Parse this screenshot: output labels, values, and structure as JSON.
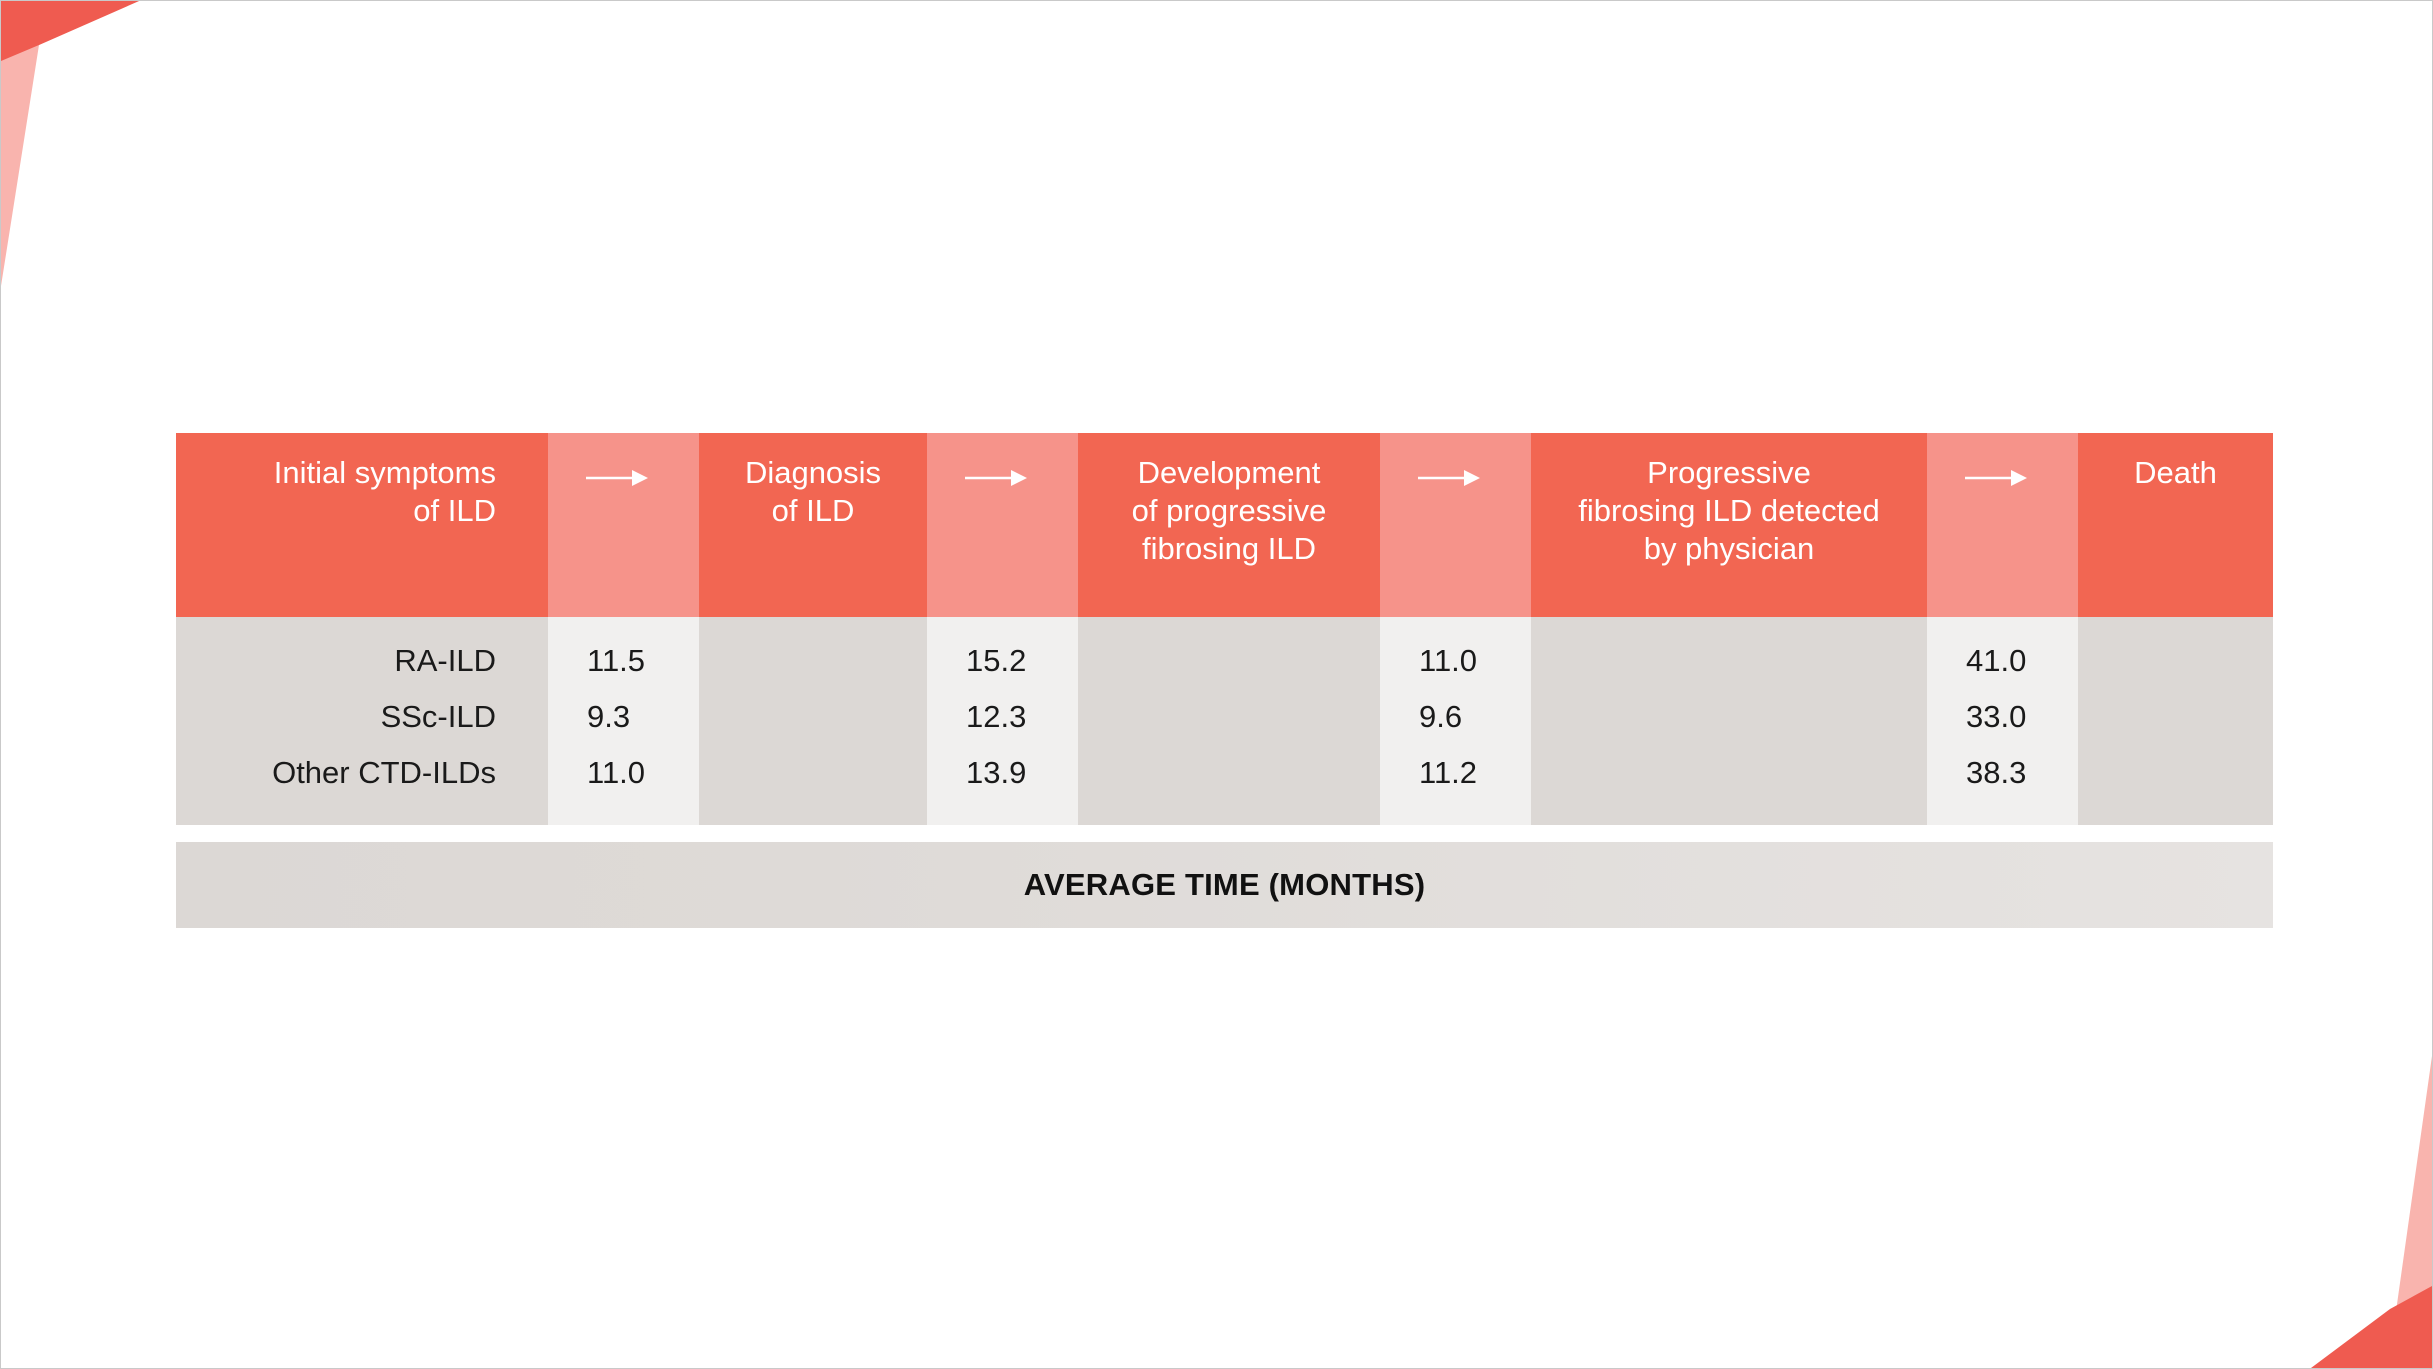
{
  "chart_data": {
    "type": "table",
    "columns": [
      {
        "kind": "stage",
        "lines": [
          "Initial symptoms",
          "of ILD"
        ],
        "align": "right"
      },
      {
        "kind": "interval"
      },
      {
        "kind": "stage",
        "lines": [
          "Diagnosis",
          "of ILD"
        ],
        "align": "center"
      },
      {
        "kind": "interval"
      },
      {
        "kind": "stage",
        "lines": [
          "Development",
          "of progressive",
          "fibrosing ILD"
        ],
        "align": "center"
      },
      {
        "kind": "interval"
      },
      {
        "kind": "stage",
        "lines": [
          "Progressive",
          "fibrosing ILD detected",
          "by physician"
        ],
        "align": "center"
      },
      {
        "kind": "interval"
      },
      {
        "kind": "stage",
        "lines": [
          "Death"
        ],
        "align": "center"
      }
    ],
    "rows": [
      {
        "label": "RA-ILD",
        "values": [
          "11.5",
          "15.2",
          "11.0",
          "41.0"
        ]
      },
      {
        "label": "SSc-ILD",
        "values": [
          "9.3",
          "12.3",
          "9.6",
          "33.0"
        ]
      },
      {
        "label": "Other CTD-ILDs",
        "values": [
          "11.0",
          "13.9",
          "11.2",
          "38.3"
        ]
      }
    ],
    "footer": "AVERAGE TIME (MONTHS)"
  },
  "colors": {
    "stage_header": "#f26652",
    "interval_header": "#f6938a",
    "stage_body": "#dcd8d5",
    "interval_body": "#f1f0ef",
    "decoration_light": "#f9b4ae",
    "decoration_dark": "#ef5b50"
  },
  "icons": {
    "interval_marker": "arrow-right-icon"
  }
}
